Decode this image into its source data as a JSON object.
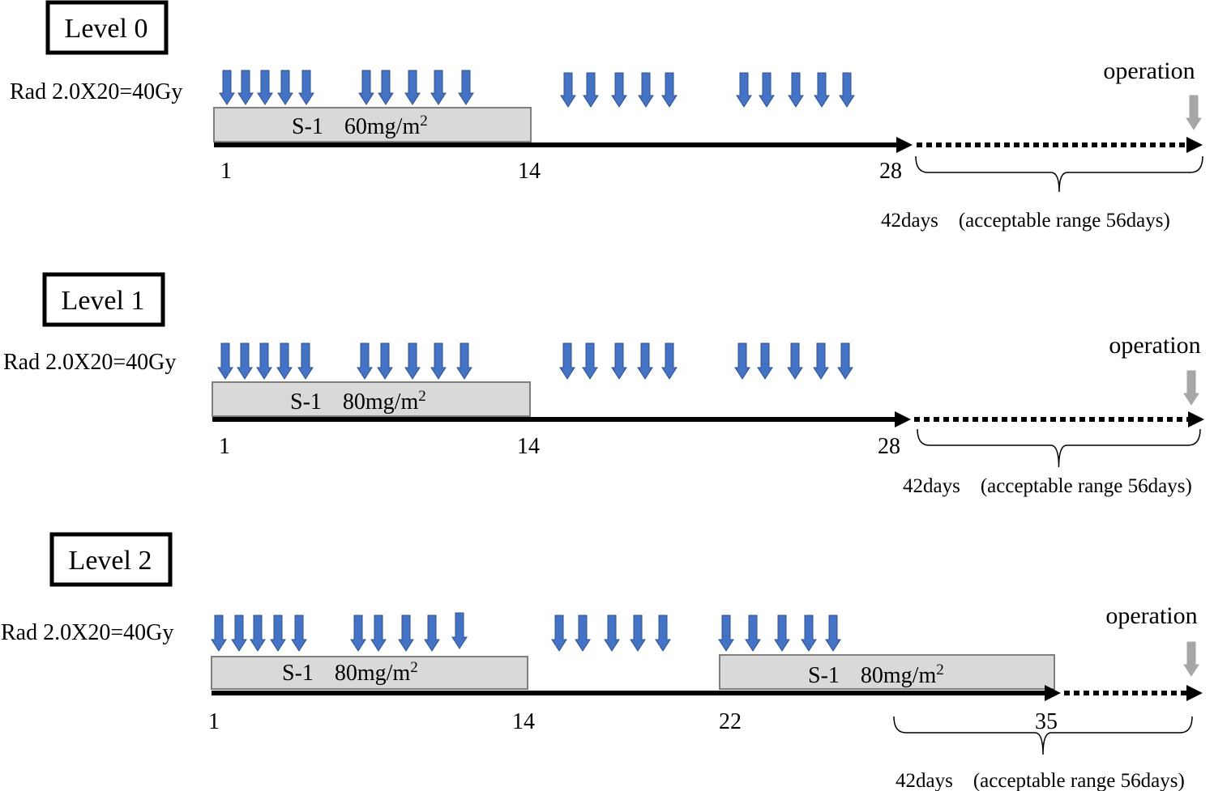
{
  "colors": {
    "rad_arrow": "#4472C4",
    "rad_arrow_edge": "#2F528F",
    "drug_box_fill": "#D9D9D9",
    "drug_box_edge": "#7F7F7F",
    "operation_arrow": "#A6A6A6",
    "timeline": "#000000"
  },
  "panels": [
    {
      "level_label": "Level 0",
      "rad_label": "Rad 2.0X20=40Gy",
      "operation_label": "operation",
      "drug_boxes": [
        {
          "drug": "S-1",
          "dose": "60mg/m",
          "dose_sup": "2"
        }
      ],
      "day_labels": [
        "1",
        "14",
        "28"
      ],
      "interval_label": "42days　(acceptable range 56days)"
    },
    {
      "level_label": "Level 1",
      "rad_label": "Rad 2.0X20=40Gy",
      "operation_label": "operation",
      "drug_boxes": [
        {
          "drug": "S-1",
          "dose": "80mg/m",
          "dose_sup": "2"
        }
      ],
      "day_labels": [
        "1",
        "14",
        "28"
      ],
      "interval_label": "42days　(acceptable range 56days)"
    },
    {
      "level_label": "Level 2",
      "rad_label": "Rad 2.0X20=40Gy",
      "operation_label": "operation",
      "drug_boxes": [
        {
          "drug": "S-1",
          "dose": "80mg/m",
          "dose_sup": "2"
        },
        {
          "drug": "S-1",
          "dose": "80mg/m",
          "dose_sup": "2"
        }
      ],
      "day_labels": [
        "1",
        "14",
        "22",
        "35"
      ],
      "interval_label": "42days　(acceptable range 56days)"
    }
  ]
}
